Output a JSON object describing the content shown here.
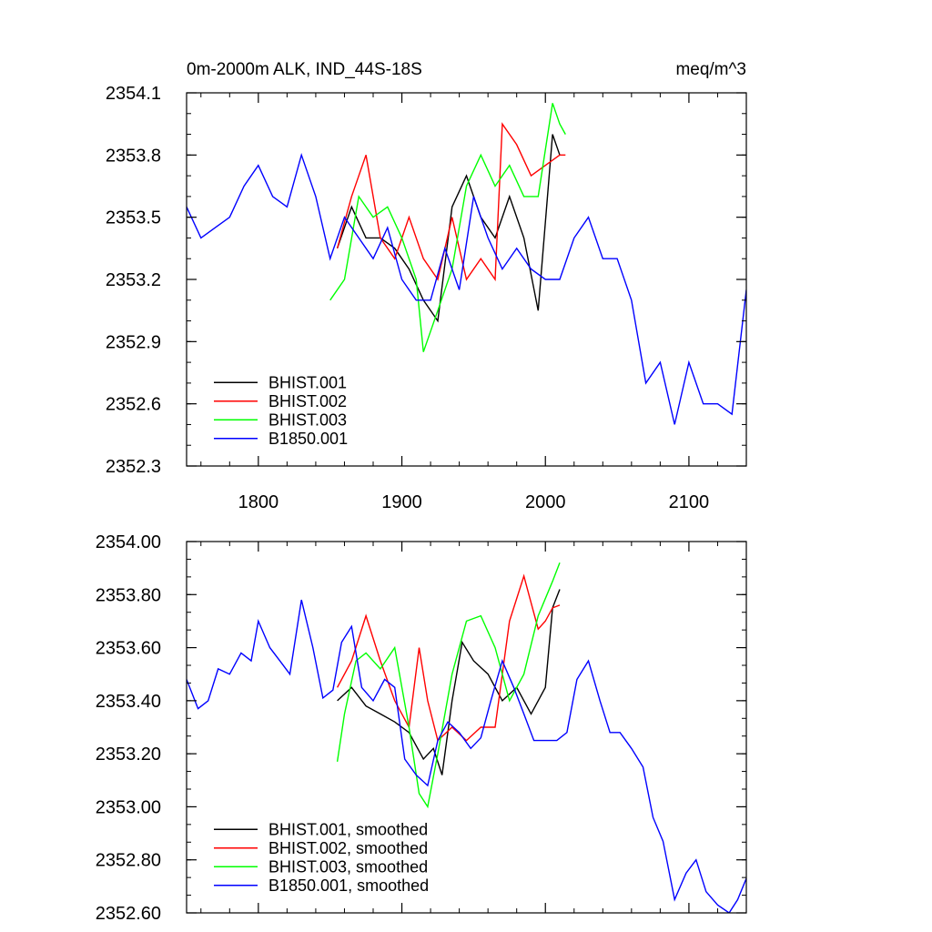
{
  "chart_data": [
    {
      "type": "line",
      "title": "0m-2000m ALK, IND_44S-18S",
      "units": "meq/m^3",
      "xlim": [
        1750,
        2140
      ],
      "ylim": [
        2352.3,
        2354.1
      ],
      "x_ticks": [
        1800,
        1900,
        2000,
        2100
      ],
      "x_tick_labels": [
        "1800",
        "1900",
        "2000",
        "2100"
      ],
      "y_ticks": [
        2352.3,
        2352.6,
        2352.9,
        2353.2,
        2353.5,
        2353.8,
        2354.1
      ],
      "y_tick_labels": [
        "2352.3",
        "2352.6",
        "2352.9",
        "2353.2",
        "2353.5",
        "2353.8",
        "2354.1"
      ],
      "legend_position": "bottom-left",
      "series": [
        {
          "name": "BHIST.001",
          "color": "#000000",
          "x": [
            1855,
            1865,
            1875,
            1885,
            1895,
            1905,
            1915,
            1925,
            1935,
            1945,
            1955,
            1965,
            1975,
            1985,
            1995,
            2005,
            2010
          ],
          "y": [
            2353.35,
            2353.55,
            2353.4,
            2353.4,
            2353.35,
            2353.25,
            2353.1,
            2353.0,
            2353.55,
            2353.7,
            2353.5,
            2353.4,
            2353.6,
            2353.4,
            2353.05,
            2353.9,
            2353.8
          ]
        },
        {
          "name": "BHIST.002",
          "color": "#ff0000",
          "x": [
            1855,
            1865,
            1875,
            1885,
            1895,
            1905,
            1915,
            1925,
            1935,
            1945,
            1955,
            1965,
            1970,
            1980,
            1990,
            2000,
            2010,
            2014
          ],
          "y": [
            2353.35,
            2353.6,
            2353.8,
            2353.4,
            2353.3,
            2353.5,
            2353.3,
            2353.2,
            2353.5,
            2353.2,
            2353.3,
            2353.2,
            2353.95,
            2353.85,
            2353.7,
            2353.75,
            2353.8,
            2353.8
          ]
        },
        {
          "name": "BHIST.003",
          "color": "#00ff00",
          "x": [
            1850,
            1860,
            1870,
            1880,
            1890,
            1900,
            1910,
            1915,
            1925,
            1935,
            1945,
            1955,
            1965,
            1975,
            1985,
            1995,
            2005,
            2010,
            2014
          ],
          "y": [
            2353.1,
            2353.2,
            2353.6,
            2353.5,
            2353.55,
            2353.4,
            2353.2,
            2352.85,
            2353.05,
            2353.25,
            2353.65,
            2353.8,
            2353.65,
            2353.75,
            2353.6,
            2353.6,
            2354.05,
            2353.95,
            2353.9
          ]
        },
        {
          "name": "B1850.001",
          "color": "#0000ff",
          "x": [
            1750,
            1760,
            1770,
            1780,
            1790,
            1800,
            1810,
            1820,
            1830,
            1840,
            1850,
            1860,
            1870,
            1880,
            1890,
            1900,
            1910,
            1920,
            1930,
            1940,
            1950,
            1960,
            1970,
            1980,
            1990,
            2000,
            2010,
            2020,
            2030,
            2040,
            2050,
            2060,
            2070,
            2080,
            2090,
            2100,
            2110,
            2120,
            2130,
            2140
          ],
          "y": [
            2353.55,
            2353.4,
            2353.45,
            2353.5,
            2353.65,
            2353.75,
            2353.6,
            2353.55,
            2353.8,
            2353.6,
            2353.3,
            2353.5,
            2353.4,
            2353.3,
            2353.45,
            2353.2,
            2353.1,
            2353.1,
            2353.35,
            2353.15,
            2353.6,
            2353.4,
            2353.25,
            2353.35,
            2353.25,
            2353.2,
            2353.2,
            2353.4,
            2353.5,
            2353.3,
            2353.3,
            2353.1,
            2352.7,
            2352.8,
            2352.5,
            2352.8,
            2352.6,
            2352.6,
            2352.55,
            2353.15
          ]
        }
      ]
    },
    {
      "type": "line",
      "xlim": [
        1750,
        2140
      ],
      "ylim": [
        2352.6,
        2354.0
      ],
      "x_ticks": [
        1800,
        1900,
        2000,
        2100
      ],
      "y_ticks": [
        2352.6,
        2352.8,
        2353.0,
        2353.2,
        2353.4,
        2353.6,
        2353.8,
        2354.0
      ],
      "y_tick_labels": [
        "2352.60",
        "2352.80",
        "2353.00",
        "2353.20",
        "2353.40",
        "2353.60",
        "2353.80",
        "2354.00"
      ],
      "legend_position": "bottom-left",
      "series": [
        {
          "name": "BHIST.001, smoothed",
          "color": "#000000",
          "x": [
            1855,
            1865,
            1875,
            1885,
            1895,
            1905,
            1915,
            1922,
            1928,
            1935,
            1942,
            1950,
            1960,
            1970,
            1980,
            1990,
            2000,
            2005,
            2010
          ],
          "y": [
            2353.4,
            2353.45,
            2353.38,
            2353.35,
            2353.32,
            2353.28,
            2353.18,
            2353.22,
            2353.12,
            2353.4,
            2353.62,
            2353.55,
            2353.5,
            2353.4,
            2353.45,
            2353.35,
            2353.45,
            2353.75,
            2353.82
          ]
        },
        {
          "name": "BHIST.002, smoothed",
          "color": "#ff0000",
          "x": [
            1855,
            1865,
            1875,
            1885,
            1895,
            1905,
            1912,
            1918,
            1925,
            1935,
            1945,
            1955,
            1965,
            1975,
            1985,
            1995,
            2000,
            2005,
            2010
          ],
          "y": [
            2353.45,
            2353.55,
            2353.72,
            2353.55,
            2353.4,
            2353.3,
            2353.6,
            2353.4,
            2353.25,
            2353.3,
            2353.25,
            2353.3,
            2353.3,
            2353.7,
            2353.87,
            2353.67,
            2353.7,
            2353.75,
            2353.76
          ]
        },
        {
          "name": "BHIST.003, smoothed",
          "color": "#00ff00",
          "x": [
            1855,
            1860,
            1868,
            1875,
            1885,
            1895,
            1905,
            1912,
            1918,
            1925,
            1935,
            1945,
            1955,
            1965,
            1975,
            1985,
            1995,
            2005,
            2010
          ],
          "y": [
            2353.17,
            2353.35,
            2353.55,
            2353.58,
            2353.52,
            2353.6,
            2353.3,
            2353.05,
            2353.0,
            2353.2,
            2353.5,
            2353.7,
            2353.72,
            2353.6,
            2353.4,
            2353.5,
            2353.72,
            2353.85,
            2353.92
          ]
        },
        {
          "name": "B1850.001, smoothed",
          "color": "#0000ff",
          "x": [
            1750,
            1758,
            1765,
            1772,
            1780,
            1788,
            1795,
            1800,
            1808,
            1815,
            1822,
            1830,
            1838,
            1845,
            1852,
            1858,
            1865,
            1872,
            1880,
            1888,
            1895,
            1902,
            1910,
            1918,
            1925,
            1932,
            1940,
            1948,
            1955,
            1962,
            1970,
            1978,
            1985,
            1992,
            2000,
            2008,
            2015,
            2022,
            2030,
            2038,
            2045,
            2052,
            2060,
            2068,
            2075,
            2082,
            2090,
            2098,
            2105,
            2112,
            2120,
            2128,
            2134,
            2140
          ],
          "y": [
            2353.48,
            2353.37,
            2353.4,
            2353.52,
            2353.5,
            2353.58,
            2353.55,
            2353.7,
            2353.6,
            2353.55,
            2353.5,
            2353.78,
            2353.6,
            2353.41,
            2353.44,
            2353.62,
            2353.68,
            2353.45,
            2353.4,
            2353.48,
            2353.45,
            2353.18,
            2353.12,
            2353.08,
            2353.25,
            2353.32,
            2353.28,
            2353.22,
            2353.26,
            2353.4,
            2353.55,
            2353.45,
            2353.35,
            2353.25,
            2353.25,
            2353.25,
            2353.28,
            2353.48,
            2353.55,
            2353.4,
            2353.28,
            2353.28,
            2353.22,
            2353.15,
            2352.96,
            2352.87,
            2352.65,
            2352.75,
            2352.8,
            2352.68,
            2352.63,
            2352.6,
            2352.65,
            2352.73
          ]
        }
      ]
    }
  ]
}
